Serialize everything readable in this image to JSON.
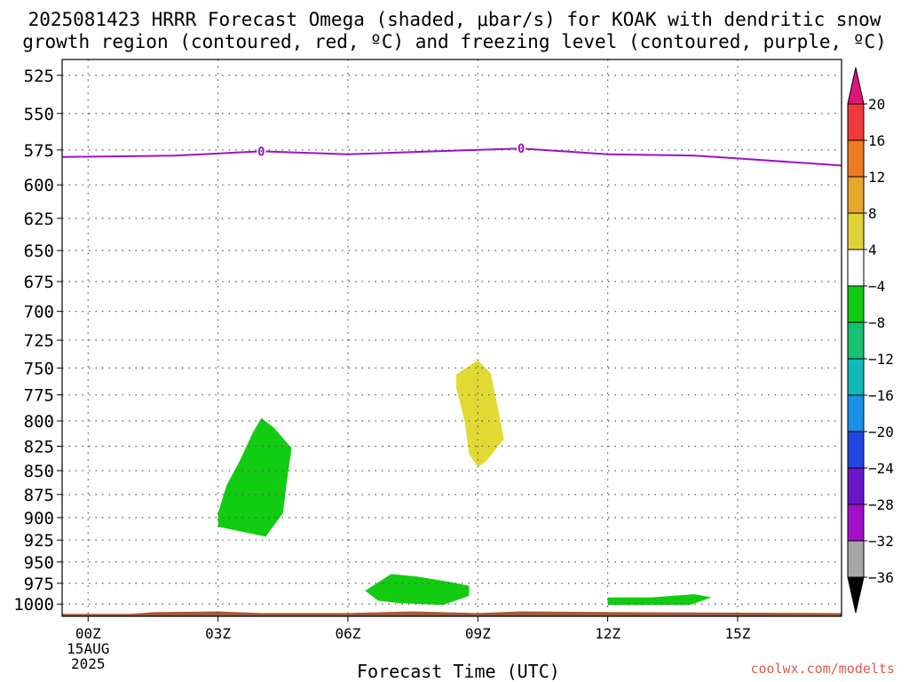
{
  "title": {
    "line1": "2025081423 HRRR Forecast Omega (shaded, μbar/s) for KOAK with dendritic snow",
    "line2": "growth region (contoured, red, ºC) and freezing level (contoured, purple, ºC)"
  },
  "credit": "coolwx.com/modelts",
  "chart_data": {
    "type": "time-height",
    "title": "2025081423 HRRR Forecast Omega (shaded, μbar/s) for KOAK with dendritic snow growth region (contoured, red, ºC) and freezing level (contoured, purple, ºC)",
    "xlabel": "Forecast Time (UTC)",
    "ylabel": "",
    "x_ticks": [
      {
        "hour": 0,
        "label": "00Z",
        "sub": [
          "15AUG",
          "2025"
        ]
      },
      {
        "hour": 3,
        "label": "03Z"
      },
      {
        "hour": 6,
        "label": "06Z"
      },
      {
        "hour": 9,
        "label": "09Z"
      },
      {
        "hour": 12,
        "label": "12Z"
      },
      {
        "hour": 15,
        "label": "15Z"
      }
    ],
    "xlim": [
      -0.6,
      17.4
    ],
    "y_ticks": [
      525,
      550,
      575,
      600,
      625,
      650,
      675,
      700,
      725,
      750,
      775,
      800,
      825,
      850,
      875,
      900,
      925,
      950,
      975,
      1000
    ],
    "ylim": [
      1015,
      515
    ],
    "y_scale": "log-pressure",
    "grid": true,
    "colorbar": {
      "labels": [
        "20",
        "16",
        "12",
        "8",
        "4",
        "−4",
        "−8",
        "−12",
        "−16",
        "−20",
        "−24",
        "−28",
        "−32",
        "−36"
      ],
      "colors": [
        "#ee3a3a",
        "#ee7d22",
        "#e6a72a",
        "#e2d23a",
        "#ffffff",
        "#11cc11",
        "#18c070",
        "#10b8b8",
        "#1a90e6",
        "#2246e0",
        "#6a16c8",
        "#a30fcb",
        "#a6a6a6"
      ],
      "top_arrow": "#e0157a",
      "bottom_arrow": "#000000"
    },
    "freezing_level": {
      "color": "#9a14c6",
      "label": "0",
      "label_points": [
        [
          4.0,
          576
        ],
        [
          10.0,
          574
        ]
      ],
      "points": [
        [
          -0.6,
          580
        ],
        [
          2,
          579
        ],
        [
          4,
          576
        ],
        [
          6,
          578
        ],
        [
          8,
          576
        ],
        [
          10,
          574
        ],
        [
          12,
          578
        ],
        [
          14,
          579
        ],
        [
          15,
          581
        ],
        [
          17.4,
          586
        ]
      ]
    },
    "omega_regions": [
      {
        "name": "green-3z-upper",
        "value_range": "-8 to -4",
        "color": "#11cc11",
        "points": [
          [
            4.0,
            797
          ],
          [
            4.3,
            807
          ],
          [
            4.7,
            827
          ],
          [
            4.6,
            858
          ],
          [
            4.5,
            895
          ],
          [
            4.1,
            921
          ],
          [
            3.6,
            916
          ],
          [
            3.0,
            910
          ],
          [
            3.0,
            895
          ],
          [
            3.2,
            865
          ],
          [
            3.5,
            840
          ],
          [
            3.8,
            812
          ]
        ]
      },
      {
        "name": "yellow-9z",
        "value_range": "4 to 8",
        "color": "#e2da34",
        "points": [
          [
            9.0,
            743
          ],
          [
            9.3,
            755
          ],
          [
            9.5,
            795
          ],
          [
            9.6,
            818
          ],
          [
            9.2,
            840
          ],
          [
            9.0,
            846
          ],
          [
            8.8,
            833
          ],
          [
            8.7,
            801
          ],
          [
            8.5,
            768
          ],
          [
            8.5,
            756
          ]
        ]
      },
      {
        "name": "green-7z-low",
        "value_range": "-8 to -4",
        "color": "#11cc11",
        "points": [
          [
            7.0,
            964
          ],
          [
            7.6,
            967
          ],
          [
            8.3,
            973
          ],
          [
            8.8,
            978
          ],
          [
            8.8,
            990
          ],
          [
            8.2,
            1001
          ],
          [
            7.2,
            999
          ],
          [
            6.7,
            996
          ],
          [
            6.4,
            984
          ]
        ]
      },
      {
        "name": "green-12z-low",
        "value_range": "-8 to -4",
        "color": "#11cc11",
        "points": [
          [
            12.0,
            992
          ],
          [
            13.0,
            992
          ],
          [
            14.0,
            988
          ],
          [
            14.4,
            992
          ],
          [
            13.9,
            1001
          ],
          [
            12.8,
            1001
          ],
          [
            12.0,
            1001
          ]
        ]
      }
    ],
    "terrain": {
      "color": "#a35a3a",
      "points": [
        [
          -0.6,
          1012
        ],
        [
          1.0,
          1012
        ],
        [
          1.5,
          1010
        ],
        [
          3.0,
          1009
        ],
        [
          4.0,
          1011
        ],
        [
          6.0,
          1011
        ],
        [
          7.5,
          1009
        ],
        [
          9.0,
          1011
        ],
        [
          10.0,
          1009
        ],
        [
          12.5,
          1010
        ],
        [
          17.4,
          1011
        ]
      ]
    }
  }
}
